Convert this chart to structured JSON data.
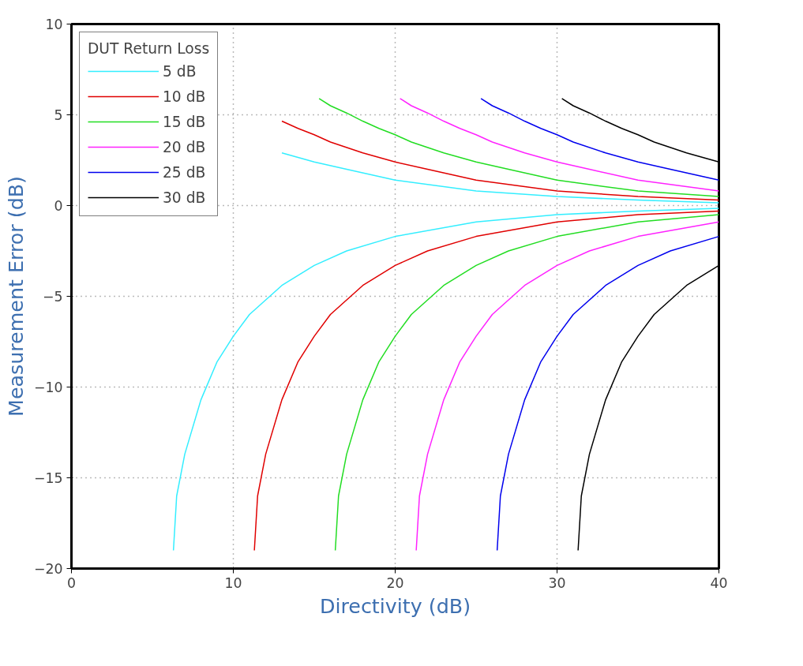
{
  "chart_data": {
    "type": "line",
    "xlabel": "Directivity (dB)",
    "ylabel": "Measurement Error (dB)",
    "legend_title": "DUT Return Loss",
    "xlim": [
      0,
      40
    ],
    "ylim": [
      -20,
      10
    ],
    "xticks": [
      0,
      10,
      20,
      30,
      40
    ],
    "yticks": [
      -20,
      -15,
      -10,
      -5,
      0,
      5,
      10
    ],
    "grid": true,
    "legend": "top left",
    "line_style": "solid",
    "marker": "none",
    "series": [
      {
        "name": "5 dB",
        "color": "#33eeff",
        "x": [
          6.3,
          6.5,
          7,
          8,
          9,
          10,
          11,
          13,
          15,
          17,
          20,
          25,
          30,
          35,
          40
        ],
        "values": [
          -19,
          -16,
          -13.7,
          -10.7,
          -8.6,
          -7.2,
          -6,
          -4.4,
          -3.3,
          -2.5,
          -1.7,
          -0.9,
          -0.5,
          -0.3,
          -0.15
        ]
      },
      {
        "color": "#33eeff",
        "x": [
          13,
          15,
          17,
          20,
          25,
          30,
          35,
          40
        ],
        "values": [
          2.9,
          2.4,
          2.0,
          1.4,
          0.8,
          0.5,
          0.3,
          0.15
        ]
      },
      {
        "name": "10 dB",
        "color": "#e00000",
        "x": [
          11.3,
          11.5,
          12,
          13,
          14,
          15,
          16,
          18,
          20,
          22,
          25,
          30,
          35,
          40
        ],
        "values": [
          -19,
          -16,
          -13.7,
          -10.7,
          -8.6,
          -7.2,
          -6,
          -4.4,
          -3.3,
          -2.5,
          -1.7,
          -0.9,
          -0.5,
          -0.3
        ]
      },
      {
        "color": "#e00000",
        "x": [
          13,
          14,
          15,
          16,
          18,
          20,
          22,
          25,
          30,
          35,
          40
        ],
        "values": [
          4.65,
          4.25,
          3.9,
          3.5,
          2.9,
          2.4,
          2.0,
          1.4,
          0.8,
          0.5,
          0.3
        ]
      },
      {
        "name": "15 dB",
        "color": "#22dd22",
        "x": [
          16.3,
          16.5,
          17,
          18,
          19,
          20,
          21,
          23,
          25,
          27,
          30,
          35,
          40
        ],
        "values": [
          -19,
          -16,
          -13.7,
          -10.7,
          -8.6,
          -7.2,
          -6,
          -4.4,
          -3.3,
          -2.5,
          -1.7,
          -0.9,
          -0.5
        ]
      },
      {
        "color": "#22dd22",
        "x": [
          15.3,
          16,
          17,
          18,
          19,
          20,
          21,
          23,
          25,
          27,
          30,
          35,
          40
        ],
        "values": [
          5.9,
          5.5,
          5.1,
          4.65,
          4.25,
          3.9,
          3.5,
          2.9,
          2.4,
          2.0,
          1.4,
          0.8,
          0.5
        ]
      },
      {
        "name": "20 dB",
        "color": "#ff22ff",
        "x": [
          21.3,
          21.5,
          22,
          23,
          24,
          25,
          26,
          28,
          30,
          32,
          35,
          40
        ],
        "values": [
          -19,
          -16,
          -13.7,
          -10.7,
          -8.6,
          -7.2,
          -6,
          -4.4,
          -3.3,
          -2.5,
          -1.7,
          -0.9
        ]
      },
      {
        "color": "#ff22ff",
        "x": [
          20.3,
          21,
          22,
          23,
          24,
          25,
          26,
          28,
          30,
          32,
          35,
          40
        ],
        "values": [
          5.9,
          5.5,
          5.1,
          4.65,
          4.25,
          3.9,
          3.5,
          2.9,
          2.4,
          2.0,
          1.4,
          0.8
        ]
      },
      {
        "name": "25 dB",
        "color": "#0000ee",
        "x": [
          26.3,
          26.5,
          27,
          28,
          29,
          30,
          31,
          33,
          35,
          37,
          40
        ],
        "values": [
          -19,
          -16,
          -13.7,
          -10.7,
          -8.6,
          -7.2,
          -6,
          -4.4,
          -3.3,
          -2.5,
          -1.7
        ]
      },
      {
        "color": "#0000ee",
        "x": [
          25.3,
          26,
          27,
          28,
          29,
          30,
          31,
          33,
          35,
          37,
          40
        ],
        "values": [
          5.9,
          5.5,
          5.1,
          4.65,
          4.25,
          3.9,
          3.5,
          2.9,
          2.4,
          2.0,
          1.4
        ]
      },
      {
        "name": "30 dB",
        "color": "#000000",
        "x": [
          31.3,
          31.5,
          32,
          33,
          34,
          35,
          36,
          38,
          40
        ],
        "values": [
          -19,
          -16,
          -13.7,
          -10.7,
          -8.6,
          -7.2,
          -6,
          -4.4,
          -3.3
        ]
      },
      {
        "color": "#000000",
        "x": [
          30.3,
          31,
          32,
          33,
          34,
          35,
          36,
          38,
          40
        ],
        "values": [
          5.9,
          5.5,
          5.1,
          4.65,
          4.25,
          3.9,
          3.5,
          2.9,
          2.4
        ]
      }
    ]
  }
}
